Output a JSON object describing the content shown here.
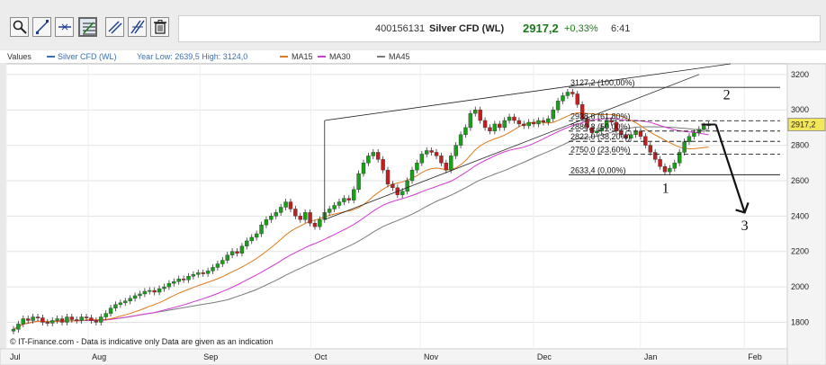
{
  "toolbar": {
    "buttons": [
      {
        "name": "zoom-icon"
      },
      {
        "name": "trendline-icon"
      },
      {
        "name": "horizontal-line-icon"
      },
      {
        "name": "fibonacci-icon"
      },
      {
        "name": "channel-icon"
      },
      {
        "name": "parallel-lines-icon"
      },
      {
        "name": "trash-icon"
      }
    ]
  },
  "info": {
    "symbol_id": "400156131",
    "name": "Silver CFD (WL)",
    "last": "2917,2",
    "change": "+0,33%",
    "time": "6:41"
  },
  "legend": {
    "values": "Values",
    "series_name": "Silver CFD (WL)",
    "range_text": "Year Low: 2639,5 High: 3124,0",
    "ma15": "MA15",
    "ma30": "MA30",
    "ma45": "MA45",
    "colors": {
      "series": "#3a6fb3",
      "ma15": "#e07a1a",
      "ma30": "#d23ad2",
      "ma45": "#7a7a7a"
    }
  },
  "source_text": "© IT-Finance.com - Data is indicative only Data are given as an indication",
  "chart_data": {
    "type": "candlestick",
    "ylim": [
      1650,
      3260
    ],
    "y_ticks": [
      1800,
      2000,
      2200,
      2400,
      2600,
      2800,
      3000,
      3200
    ],
    "x_ticks": [
      "Jul",
      "Aug",
      "Sep",
      "Oct",
      "Nov",
      "Dec",
      "Jan",
      "Feb"
    ],
    "last_price_label": "2917,2",
    "colors": {
      "up": "#18a018",
      "down": "#c22020",
      "ma15": "#e07a1a",
      "ma30": "#d23ad2",
      "ma45": "#7a7a7a"
    },
    "closes": [
      1760,
      1790,
      1820,
      1810,
      1830,
      1825,
      1800,
      1795,
      1810,
      1820,
      1800,
      1830,
      1815,
      1810,
      1830,
      1825,
      1810,
      1800,
      1830,
      1850,
      1880,
      1900,
      1910,
      1920,
      1935,
      1950,
      1960,
      1975,
      1980,
      1970,
      1990,
      2000,
      2020,
      2030,
      2045,
      2040,
      2060,
      2070,
      2080,
      2075,
      2090,
      2110,
      2130,
      2150,
      2180,
      2200,
      2190,
      2230,
      2260,
      2280,
      2300,
      2350,
      2380,
      2400,
      2420,
      2450,
      2480,
      2440,
      2400,
      2380,
      2420,
      2360,
      2340,
      2380,
      2420,
      2440,
      2460,
      2480,
      2500,
      2490,
      2550,
      2640,
      2700,
      2740,
      2760,
      2720,
      2660,
      2580,
      2560,
      2520,
      2540,
      2600,
      2660,
      2700,
      2750,
      2770,
      2760,
      2740,
      2700,
      2660,
      2740,
      2800,
      2860,
      2900,
      2980,
      3000,
      2940,
      2900,
      2880,
      2920,
      2900,
      2940,
      2960,
      2940,
      2920,
      2910,
      2930,
      2920,
      2940,
      2930,
      2950,
      3000,
      3050,
      3080,
      3100,
      3090,
      3030,
      2950,
      2900,
      2870,
      2880,
      2900,
      2940,
      2930,
      2880,
      2860,
      2840,
      2860,
      2880,
      2850,
      2800,
      2760,
      2720,
      2680,
      2650,
      2670,
      2700,
      2760,
      2820,
      2850,
      2870,
      2890,
      2910,
      2917
    ],
    "fib_levels": [
      {
        "label": "3127,2 (100,00%)",
        "value": 3127.2
      },
      {
        "label": "2938,6 (61,80%)",
        "value": 2938.6
      },
      {
        "label": "2880,3 (50,00%)",
        "value": 2880.3
      },
      {
        "label": "2822,0 (38,20%)",
        "value": 2822.0
      },
      {
        "label": "2750,0 (23,60%)",
        "value": 2750.0
      },
      {
        "label": "2633,4 (0,00%)",
        "value": 2633.4
      }
    ],
    "annotations": [
      "1",
      "2",
      "3"
    ]
  }
}
